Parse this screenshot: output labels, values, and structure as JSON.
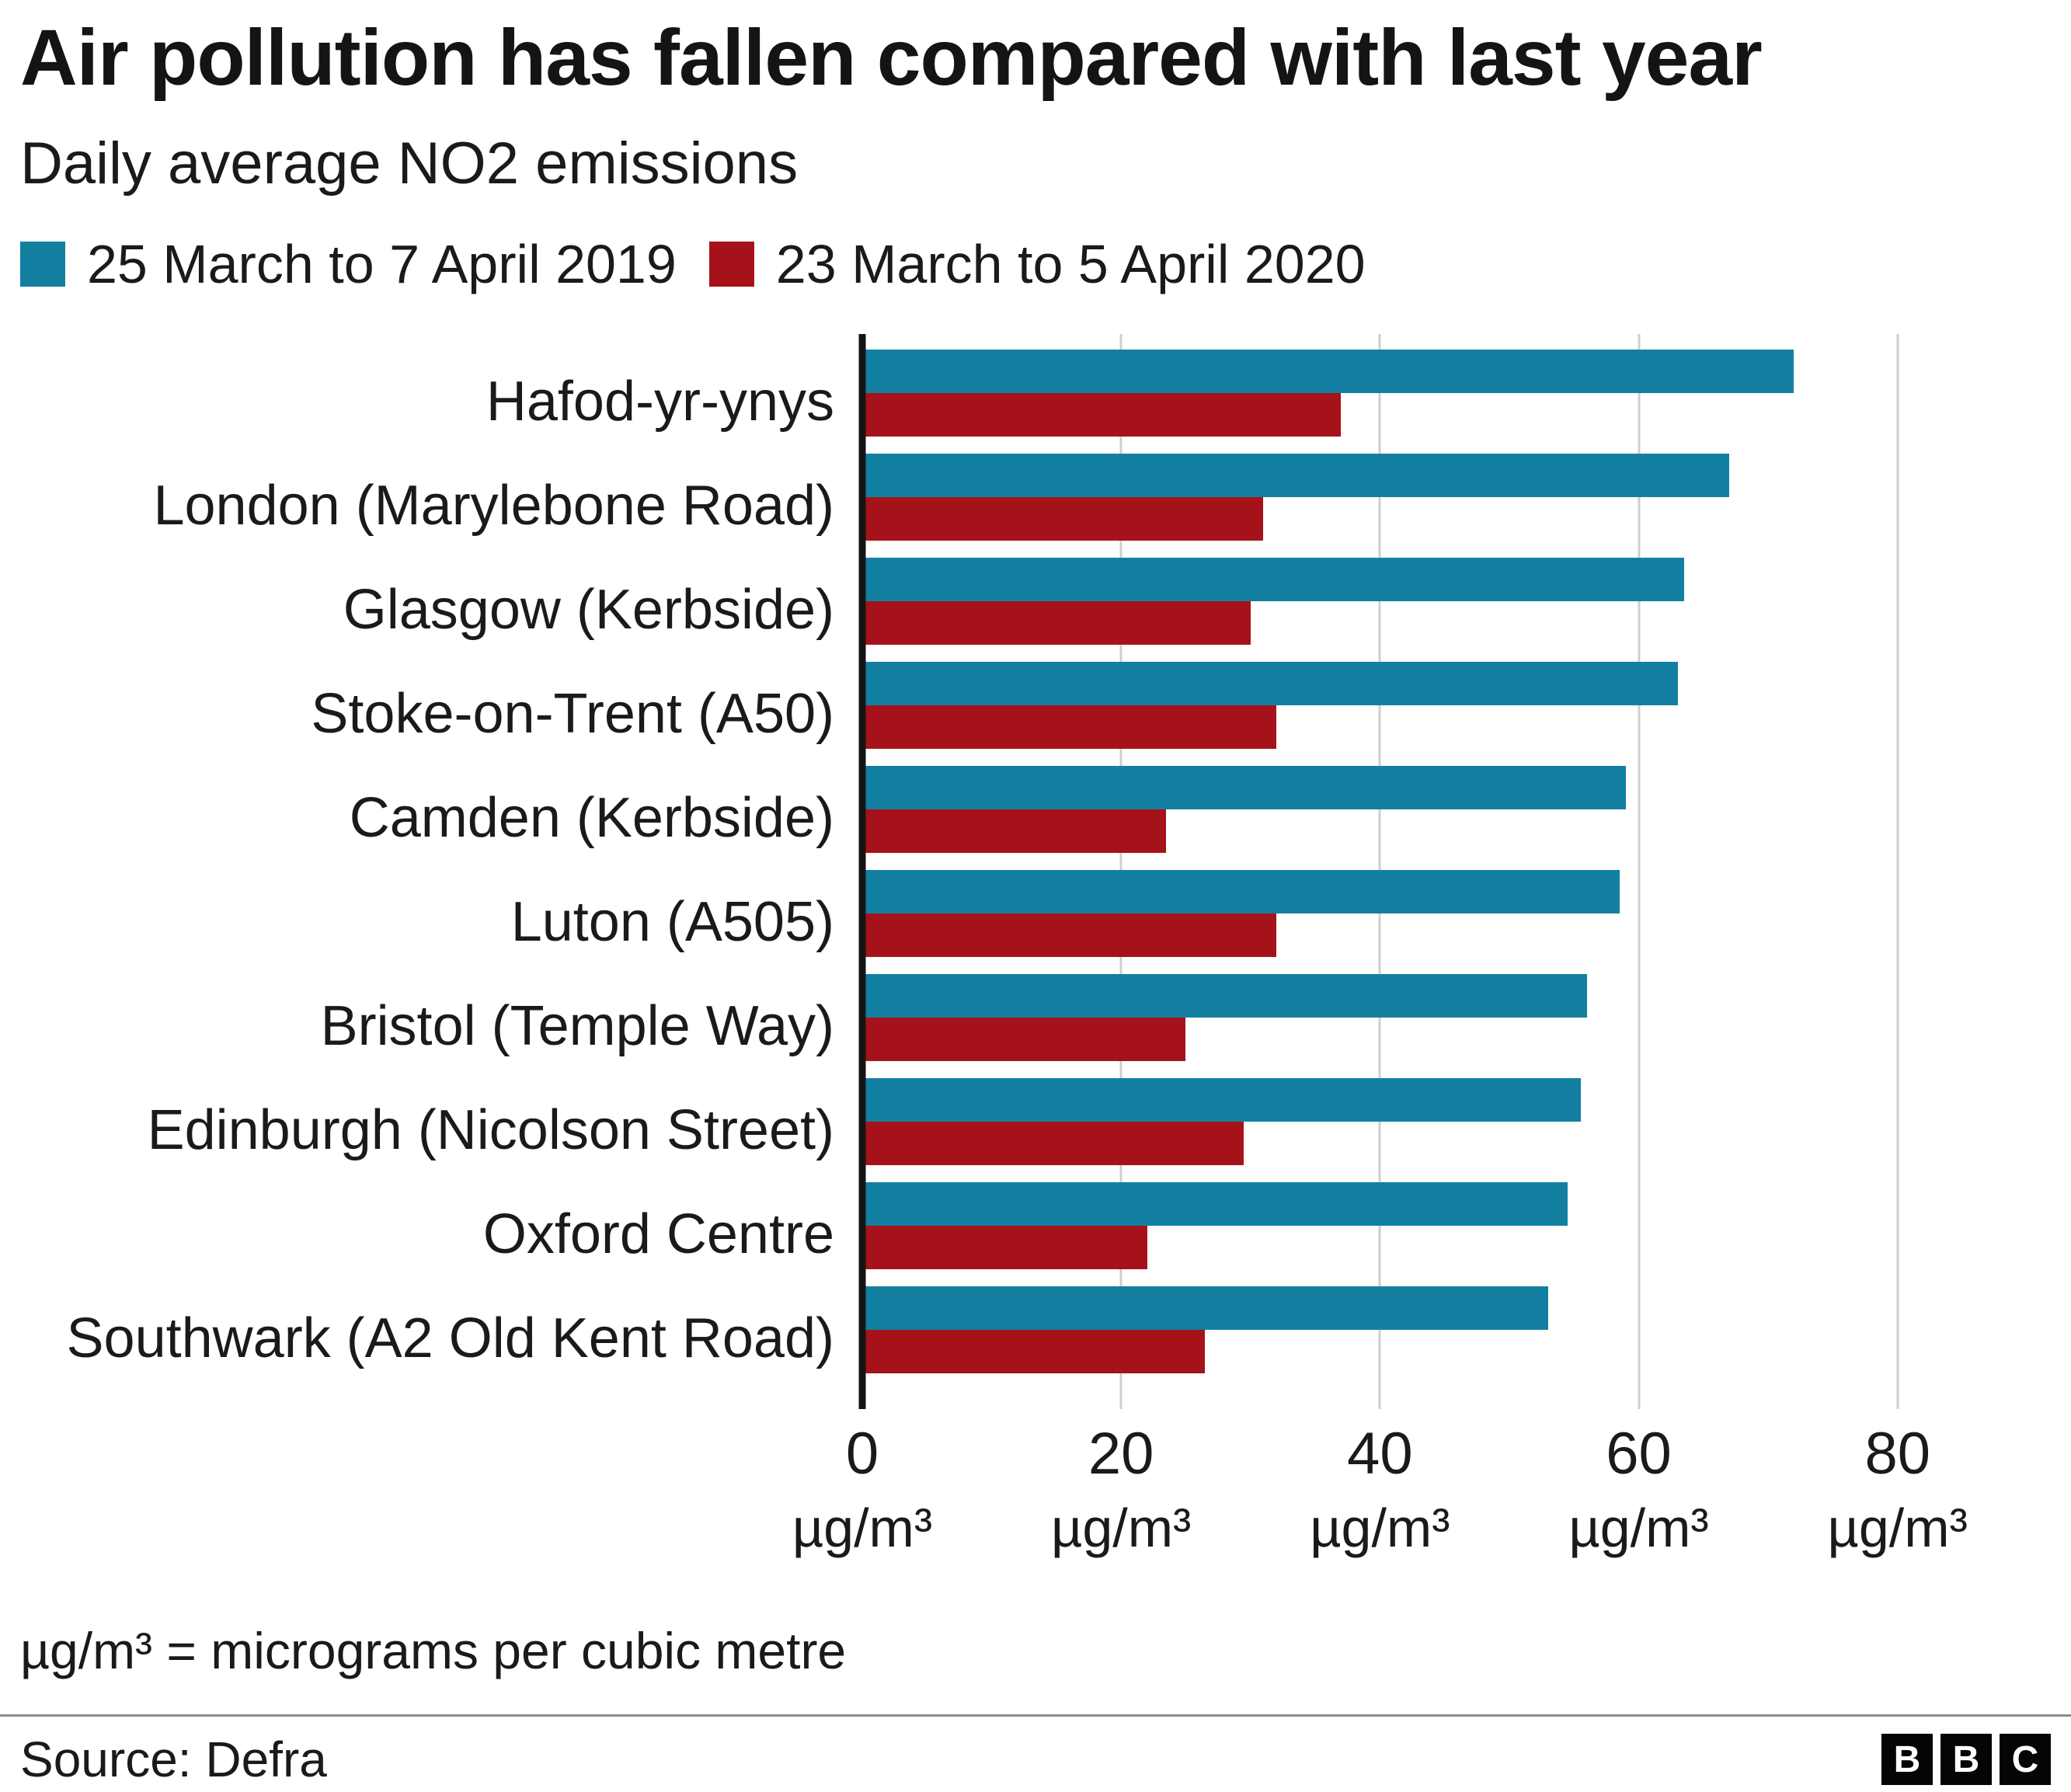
{
  "title": "Air pollution has fallen compared with last year",
  "subtitle": "Daily average NO2 emissions",
  "legend": {
    "items": [
      {
        "label": "25 March to 7 April 2019",
        "color": "#1380a1"
      },
      {
        "label": "23 March to 5 April 2020",
        "color": "#a6121a"
      }
    ]
  },
  "chart_data": {
    "type": "bar",
    "orientation": "horizontal",
    "title": "Air pollution has fallen compared with last year",
    "subtitle": "Daily average NO2 emissions",
    "xlabel": "µg/m³",
    "ylabel": "",
    "xlim": [
      0,
      88
    ],
    "grid": true,
    "legend_position": "top",
    "categories": [
      "Hafod-yr-ynys",
      "London (Marylebone Road)",
      "Glasgow (Kerbside)",
      "Stoke-on-Trent (A50)",
      "Camden (Kerbside)",
      "Luton (A505)",
      "Bristol (Temple Way)",
      "Edinburgh (Nicolson Street)",
      "Oxford Centre",
      "Southwark (A2 Old Kent Road)"
    ],
    "series": [
      {
        "name": "25 March to 7 April 2019",
        "color": "#1380a1",
        "values": [
          72,
          67,
          63.5,
          63,
          59,
          58.5,
          56,
          55.5,
          54.5,
          53
        ]
      },
      {
        "name": "23 March to 5 April 2020",
        "color": "#a6121a",
        "values": [
          37,
          31,
          30,
          32,
          23.5,
          32,
          25,
          29.5,
          22,
          26.5
        ]
      }
    ],
    "x_ticks": [
      {
        "value": 0,
        "label": "0",
        "unit": "µg/m³"
      },
      {
        "value": 20,
        "label": "20",
        "unit": "µg/m³"
      },
      {
        "value": 40,
        "label": "40",
        "unit": "µg/m³"
      },
      {
        "value": 60,
        "label": "60",
        "unit": "µg/m³"
      },
      {
        "value": 80,
        "label": "80",
        "unit": "µg/m³"
      }
    ]
  },
  "footnote": "µg/m³ = micrograms per cubic metre",
  "source": "Source: Defra",
  "logo": {
    "blocks": [
      "B",
      "B",
      "C"
    ]
  }
}
